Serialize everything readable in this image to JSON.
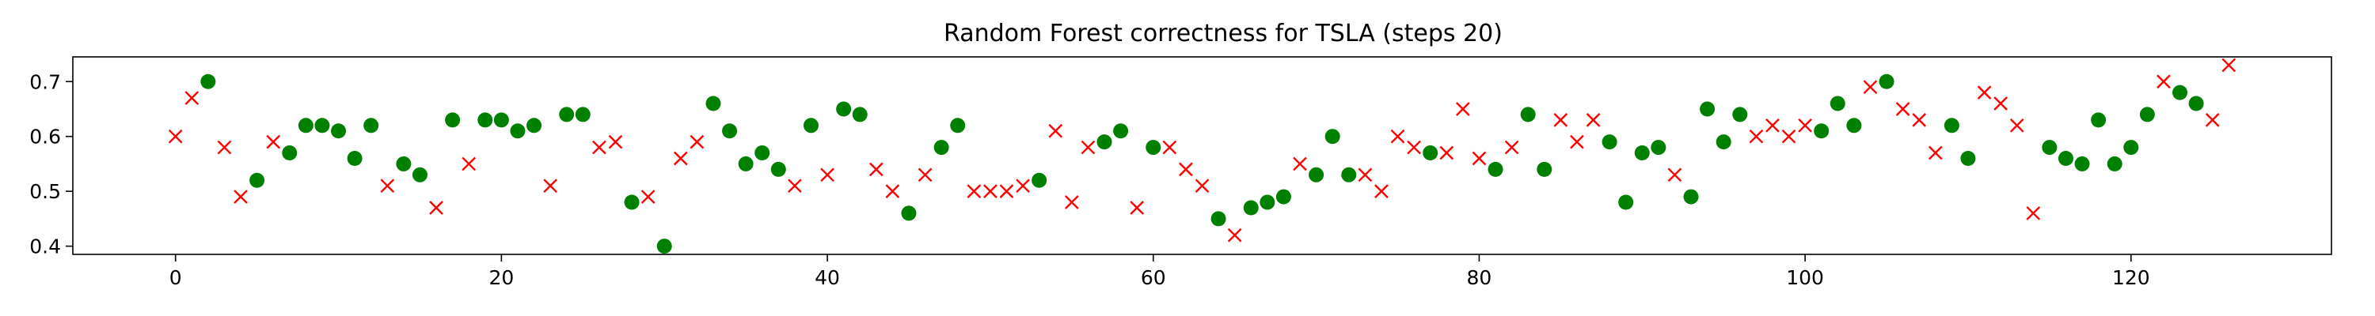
{
  "chart_data": {
    "type": "scatter",
    "title": "Random Forest correctness for TSLA (steps 20)",
    "xlabel": "",
    "ylabel": "",
    "xlim": [
      -6.3,
      132.3
    ],
    "ylim": [
      0.385,
      0.745
    ],
    "x_ticks": [
      0,
      20,
      40,
      60,
      80,
      100,
      120
    ],
    "y_ticks": [
      0.4,
      0.5,
      0.6,
      0.7
    ],
    "grid": false,
    "series": [
      {
        "marker": "circle",
        "color": "#008000",
        "points": [
          [
            2,
            0.7
          ],
          [
            5,
            0.52
          ],
          [
            7,
            0.57
          ],
          [
            8,
            0.62
          ],
          [
            9,
            0.62
          ],
          [
            10,
            0.61
          ],
          [
            11,
            0.56
          ],
          [
            12,
            0.62
          ],
          [
            14,
            0.55
          ],
          [
            15,
            0.53
          ],
          [
            17,
            0.63
          ],
          [
            19,
            0.63
          ],
          [
            20,
            0.63
          ],
          [
            21,
            0.61
          ],
          [
            22,
            0.62
          ],
          [
            24,
            0.64
          ],
          [
            25,
            0.64
          ],
          [
            28,
            0.48
          ],
          [
            30,
            0.4
          ],
          [
            33,
            0.66
          ],
          [
            34,
            0.61
          ],
          [
            35,
            0.55
          ],
          [
            36,
            0.57
          ],
          [
            37,
            0.54
          ],
          [
            39,
            0.62
          ],
          [
            41,
            0.65
          ],
          [
            42,
            0.64
          ],
          [
            45,
            0.46
          ],
          [
            47,
            0.58
          ],
          [
            48,
            0.62
          ],
          [
            53,
            0.52
          ],
          [
            57,
            0.59
          ],
          [
            58,
            0.61
          ],
          [
            60,
            0.58
          ],
          [
            64,
            0.45
          ],
          [
            66,
            0.47
          ],
          [
            67,
            0.48
          ],
          [
            68,
            0.49
          ],
          [
            70,
            0.53
          ],
          [
            71,
            0.6
          ],
          [
            72,
            0.53
          ],
          [
            77,
            0.57
          ],
          [
            81,
            0.54
          ],
          [
            83,
            0.64
          ],
          [
            84,
            0.54
          ],
          [
            88,
            0.59
          ],
          [
            89,
            0.48
          ],
          [
            90,
            0.57
          ],
          [
            91,
            0.58
          ],
          [
            93,
            0.49
          ],
          [
            94,
            0.65
          ],
          [
            95,
            0.59
          ],
          [
            96,
            0.64
          ],
          [
            101,
            0.61
          ],
          [
            102,
            0.66
          ],
          [
            103,
            0.62
          ],
          [
            105,
            0.7
          ],
          [
            109,
            0.62
          ],
          [
            110,
            0.56
          ],
          [
            115,
            0.58
          ],
          [
            116,
            0.56
          ],
          [
            117,
            0.55
          ],
          [
            118,
            0.63
          ],
          [
            119,
            0.55
          ],
          [
            120,
            0.58
          ],
          [
            121,
            0.64
          ],
          [
            123,
            0.68
          ],
          [
            124,
            0.66
          ]
        ]
      },
      {
        "marker": "x",
        "color": "#ff0000",
        "points": [
          [
            0,
            0.6
          ],
          [
            1,
            0.67
          ],
          [
            3,
            0.58
          ],
          [
            4,
            0.49
          ],
          [
            6,
            0.59
          ],
          [
            13,
            0.51
          ],
          [
            16,
            0.47
          ],
          [
            18,
            0.55
          ],
          [
            23,
            0.51
          ],
          [
            26,
            0.58
          ],
          [
            27,
            0.59
          ],
          [
            29,
            0.49
          ],
          [
            31,
            0.56
          ],
          [
            32,
            0.59
          ],
          [
            38,
            0.51
          ],
          [
            40,
            0.53
          ],
          [
            43,
            0.54
          ],
          [
            44,
            0.5
          ],
          [
            46,
            0.53
          ],
          [
            49,
            0.5
          ],
          [
            50,
            0.5
          ],
          [
            51,
            0.5
          ],
          [
            52,
            0.51
          ],
          [
            54,
            0.61
          ],
          [
            55,
            0.48
          ],
          [
            56,
            0.58
          ],
          [
            59,
            0.47
          ],
          [
            61,
            0.58
          ],
          [
            62,
            0.54
          ],
          [
            63,
            0.51
          ],
          [
            65,
            0.42
          ],
          [
            69,
            0.55
          ],
          [
            73,
            0.53
          ],
          [
            74,
            0.5
          ],
          [
            75,
            0.6
          ],
          [
            76,
            0.58
          ],
          [
            78,
            0.57
          ],
          [
            79,
            0.65
          ],
          [
            80,
            0.56
          ],
          [
            82,
            0.58
          ],
          [
            85,
            0.63
          ],
          [
            86,
            0.59
          ],
          [
            87,
            0.63
          ],
          [
            92,
            0.53
          ],
          [
            97,
            0.6
          ],
          [
            98,
            0.62
          ],
          [
            99,
            0.6
          ],
          [
            100,
            0.62
          ],
          [
            104,
            0.69
          ],
          [
            106,
            0.65
          ],
          [
            107,
            0.63
          ],
          [
            108,
            0.57
          ],
          [
            111,
            0.68
          ],
          [
            112,
            0.66
          ],
          [
            113,
            0.62
          ],
          [
            114,
            0.46
          ],
          [
            122,
            0.7
          ],
          [
            125,
            0.63
          ],
          [
            126,
            0.73
          ]
        ]
      }
    ]
  }
}
